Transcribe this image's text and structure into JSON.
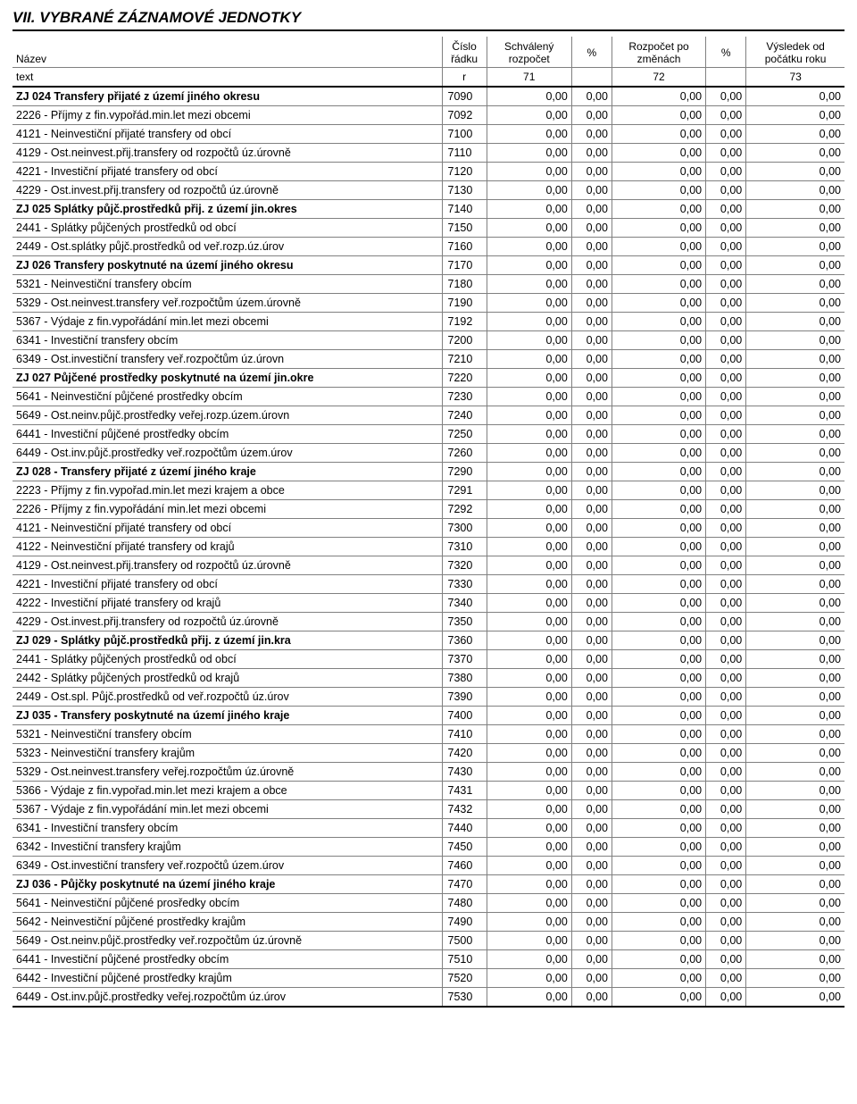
{
  "section_title": "VII.   VYBRANÉ ZÁZNAMOVÉ JEDNOTKY",
  "headers": {
    "name": "Název",
    "rownum": "Číslo řádku",
    "approved": "Schválený rozpočet",
    "pct": "%",
    "changed": "Rozpočet po změnách",
    "result": "Výsledek od počátku roku",
    "sub_name": "text",
    "sub_rownum": "r",
    "sub_approved": "71",
    "sub_changed": "72",
    "sub_result": "73"
  },
  "rows": [
    {
      "bold": true,
      "name": "ZJ 024 Transfery přijaté z území jiného okresu",
      "r": "7090",
      "v": [
        "0,00",
        "0,00",
        "0,00",
        "0,00",
        "0,00"
      ]
    },
    {
      "bold": false,
      "name": "2226 - Příjmy z fin.vypořád.min.let mezi obcemi",
      "r": "7092",
      "v": [
        "0,00",
        "0,00",
        "0,00",
        "0,00",
        "0,00"
      ]
    },
    {
      "bold": false,
      "name": "4121 - Neinvestiční přijaté transfery od obcí",
      "r": "7100",
      "v": [
        "0,00",
        "0,00",
        "0,00",
        "0,00",
        "0,00"
      ]
    },
    {
      "bold": false,
      "name": "4129 - Ost.neinvest.přij.transfery od rozpočtů úz.úrovně",
      "r": "7110",
      "v": [
        "0,00",
        "0,00",
        "0,00",
        "0,00",
        "0,00"
      ]
    },
    {
      "bold": false,
      "name": "4221 - Investiční přijaté transfery od obcí",
      "r": "7120",
      "v": [
        "0,00",
        "0,00",
        "0,00",
        "0,00",
        "0,00"
      ]
    },
    {
      "bold": false,
      "name": "4229 - Ost.invest.přij.transfery od rozpočtů úz.úrovně",
      "r": "7130",
      "v": [
        "0,00",
        "0,00",
        "0,00",
        "0,00",
        "0,00"
      ]
    },
    {
      "bold": true,
      "name": "ZJ 025 Splátky půjč.prostředků přij. z území jin.okres",
      "r": "7140",
      "v": [
        "0,00",
        "0,00",
        "0,00",
        "0,00",
        "0,00"
      ]
    },
    {
      "bold": false,
      "name": "2441 - Splátky půjčených prostředků od obcí",
      "r": "7150",
      "v": [
        "0,00",
        "0,00",
        "0,00",
        "0,00",
        "0,00"
      ]
    },
    {
      "bold": false,
      "name": "2449 - Ost.splátky půjč.prostředků od veř.rozp.úz.úrov",
      "r": "7160",
      "v": [
        "0,00",
        "0,00",
        "0,00",
        "0,00",
        "0,00"
      ]
    },
    {
      "bold": true,
      "name": "ZJ 026 Transfery poskytnuté na území jiného okresu",
      "r": "7170",
      "v": [
        "0,00",
        "0,00",
        "0,00",
        "0,00",
        "0,00"
      ]
    },
    {
      "bold": false,
      "name": "5321 - Neinvestiční transfery obcím",
      "r": "7180",
      "v": [
        "0,00",
        "0,00",
        "0,00",
        "0,00",
        "0,00"
      ]
    },
    {
      "bold": false,
      "name": "5329 - Ost.neinvest.transfery veř.rozpočtům územ.úrovně",
      "r": "7190",
      "v": [
        "0,00",
        "0,00",
        "0,00",
        "0,00",
        "0,00"
      ]
    },
    {
      "bold": false,
      "name": "5367 - Výdaje z fin.vypořádání min.let mezi obcemi",
      "r": "7192",
      "v": [
        "0,00",
        "0,00",
        "0,00",
        "0,00",
        "0,00"
      ]
    },
    {
      "bold": false,
      "name": "6341 - Investiční transfery obcím",
      "r": "7200",
      "v": [
        "0,00",
        "0,00",
        "0,00",
        "0,00",
        "0,00"
      ]
    },
    {
      "bold": false,
      "name": "6349 - Ost.investiční transfery veř.rozpočtům úz.úrovn",
      "r": "7210",
      "v": [
        "0,00",
        "0,00",
        "0,00",
        "0,00",
        "0,00"
      ]
    },
    {
      "bold": true,
      "name": "ZJ 027 Půjčené prostředky poskytnuté na území jin.okre",
      "r": "7220",
      "v": [
        "0,00",
        "0,00",
        "0,00",
        "0,00",
        "0,00"
      ]
    },
    {
      "bold": false,
      "name": "5641 - Neinvestiční půjčené prostředky obcím",
      "r": "7230",
      "v": [
        "0,00",
        "0,00",
        "0,00",
        "0,00",
        "0,00"
      ]
    },
    {
      "bold": false,
      "name": "5649 - Ost.neinv.půjč.prostředky veřej.rozp.územ.úrovn",
      "r": "7240",
      "v": [
        "0,00",
        "0,00",
        "0,00",
        "0,00",
        "0,00"
      ]
    },
    {
      "bold": false,
      "name": "6441 - Investiční půjčené prostředky obcím",
      "r": "7250",
      "v": [
        "0,00",
        "0,00",
        "0,00",
        "0,00",
        "0,00"
      ]
    },
    {
      "bold": false,
      "name": "6449 - Ost.inv.půjč.prostředky veř.rozpočtům územ.úrov",
      "r": "7260",
      "v": [
        "0,00",
        "0,00",
        "0,00",
        "0,00",
        "0,00"
      ]
    },
    {
      "bold": true,
      "name": "ZJ 028 - Transfery přijaté z území jiného kraje",
      "r": "7290",
      "v": [
        "0,00",
        "0,00",
        "0,00",
        "0,00",
        "0,00"
      ]
    },
    {
      "bold": false,
      "name": "2223 - Příjmy z fin.vypořad.min.let mezi krajem a obce",
      "r": "7291",
      "v": [
        "0,00",
        "0,00",
        "0,00",
        "0,00",
        "0,00"
      ]
    },
    {
      "bold": false,
      "name": "2226 - Příjmy z fin.vypořádání min.let mezi obcemi",
      "r": "7292",
      "v": [
        "0,00",
        "0,00",
        "0,00",
        "0,00",
        "0,00"
      ]
    },
    {
      "bold": false,
      "name": "4121 - Neinvestiční přijaté transfery od obcí",
      "r": "7300",
      "v": [
        "0,00",
        "0,00",
        "0,00",
        "0,00",
        "0,00"
      ]
    },
    {
      "bold": false,
      "name": "4122 - Neinvestiční přijaté transfery od krajů",
      "r": "7310",
      "v": [
        "0,00",
        "0,00",
        "0,00",
        "0,00",
        "0,00"
      ]
    },
    {
      "bold": false,
      "name": "4129 - Ost.neinvest.přij.transfery od rozpočtů úz.úrovně",
      "r": "7320",
      "v": [
        "0,00",
        "0,00",
        "0,00",
        "0,00",
        "0,00"
      ]
    },
    {
      "bold": false,
      "name": "4221 - Investiční přijaté transfery od obcí",
      "r": "7330",
      "v": [
        "0,00",
        "0,00",
        "0,00",
        "0,00",
        "0,00"
      ]
    },
    {
      "bold": false,
      "name": "4222 - Investiční přijaté transfery od krajů",
      "r": "7340",
      "v": [
        "0,00",
        "0,00",
        "0,00",
        "0,00",
        "0,00"
      ]
    },
    {
      "bold": false,
      "name": "4229 - Ost.invest.přij.transfery od rozpočtů úz.úrovně",
      "r": "7350",
      "v": [
        "0,00",
        "0,00",
        "0,00",
        "0,00",
        "0,00"
      ]
    },
    {
      "bold": true,
      "name": "ZJ 029 - Splátky půjč.prostředků přij. z území jin.kra",
      "r": "7360",
      "v": [
        "0,00",
        "0,00",
        "0,00",
        "0,00",
        "0,00"
      ]
    },
    {
      "bold": false,
      "name": "2441 - Splátky půjčených prostředků od obcí",
      "r": "7370",
      "v": [
        "0,00",
        "0,00",
        "0,00",
        "0,00",
        "0,00"
      ]
    },
    {
      "bold": false,
      "name": "2442 - Splátky půjčených prostředků od krajů",
      "r": "7380",
      "v": [
        "0,00",
        "0,00",
        "0,00",
        "0,00",
        "0,00"
      ]
    },
    {
      "bold": false,
      "name": "2449 - Ost.spl. Půjč.prostředků od veř.rozpočtů úz.úrov",
      "r": "7390",
      "v": [
        "0,00",
        "0,00",
        "0,00",
        "0,00",
        "0,00"
      ]
    },
    {
      "bold": true,
      "name": "ZJ 035 - Transfery poskytnuté na území jiného kraje",
      "r": "7400",
      "v": [
        "0,00",
        "0,00",
        "0,00",
        "0,00",
        "0,00"
      ]
    },
    {
      "bold": false,
      "name": "5321 - Neinvestiční transfery obcím",
      "r": "7410",
      "v": [
        "0,00",
        "0,00",
        "0,00",
        "0,00",
        "0,00"
      ]
    },
    {
      "bold": false,
      "name": "5323 - Neinvestiční transfery krajům",
      "r": "7420",
      "v": [
        "0,00",
        "0,00",
        "0,00",
        "0,00",
        "0,00"
      ]
    },
    {
      "bold": false,
      "name": "5329 - Ost.neinvest.transfery veřej.rozpočtům úz.úrovně",
      "r": "7430",
      "v": [
        "0,00",
        "0,00",
        "0,00",
        "0,00",
        "0,00"
      ]
    },
    {
      "bold": false,
      "name": "5366 - Výdaje z fin.vypořad.min.let mezi krajem a obce",
      "r": "7431",
      "v": [
        "0,00",
        "0,00",
        "0,00",
        "0,00",
        "0,00"
      ]
    },
    {
      "bold": false,
      "name": "5367 - Výdaje z fin.vypořádání min.let mezi obcemi",
      "r": "7432",
      "v": [
        "0,00",
        "0,00",
        "0,00",
        "0,00",
        "0,00"
      ]
    },
    {
      "bold": false,
      "name": "6341 - Investiční transfery obcím",
      "r": "7440",
      "v": [
        "0,00",
        "0,00",
        "0,00",
        "0,00",
        "0,00"
      ]
    },
    {
      "bold": false,
      "name": "6342 - Investiční transfery krajům",
      "r": "7450",
      "v": [
        "0,00",
        "0,00",
        "0,00",
        "0,00",
        "0,00"
      ]
    },
    {
      "bold": false,
      "name": "6349 - Ost.investiční transfery veř.rozpočtů územ.úrov",
      "r": "7460",
      "v": [
        "0,00",
        "0,00",
        "0,00",
        "0,00",
        "0,00"
      ]
    },
    {
      "bold": true,
      "name": "ZJ 036 - Půjčky poskytnuté na území jiného kraje",
      "r": "7470",
      "v": [
        "0,00",
        "0,00",
        "0,00",
        "0,00",
        "0,00"
      ]
    },
    {
      "bold": false,
      "name": "5641 - Neinvestiční půjčené prosředky obcím",
      "r": "7480",
      "v": [
        "0,00",
        "0,00",
        "0,00",
        "0,00",
        "0,00"
      ]
    },
    {
      "bold": false,
      "name": "5642 - Neinvestiční půjčené prostředky krajům",
      "r": "7490",
      "v": [
        "0,00",
        "0,00",
        "0,00",
        "0,00",
        "0,00"
      ]
    },
    {
      "bold": false,
      "name": "5649 - Ost.neinv.půjč.prostředky veř.rozpočtům úz.úrovně",
      "r": "7500",
      "v": [
        "0,00",
        "0,00",
        "0,00",
        "0,00",
        "0,00"
      ]
    },
    {
      "bold": false,
      "name": "6441 - Investiční půjčené prostředky obcím",
      "r": "7510",
      "v": [
        "0,00",
        "0,00",
        "0,00",
        "0,00",
        "0,00"
      ]
    },
    {
      "bold": false,
      "name": "6442 - Investiční půjčené prostředky krajům",
      "r": "7520",
      "v": [
        "0,00",
        "0,00",
        "0,00",
        "0,00",
        "0,00"
      ]
    },
    {
      "bold": false,
      "name": "6449 - Ost.inv.půjč.prostředky veřej.rozpočtům úz.úrov",
      "r": "7530",
      "v": [
        "0,00",
        "0,00",
        "0,00",
        "0,00",
        "0,00"
      ]
    }
  ]
}
